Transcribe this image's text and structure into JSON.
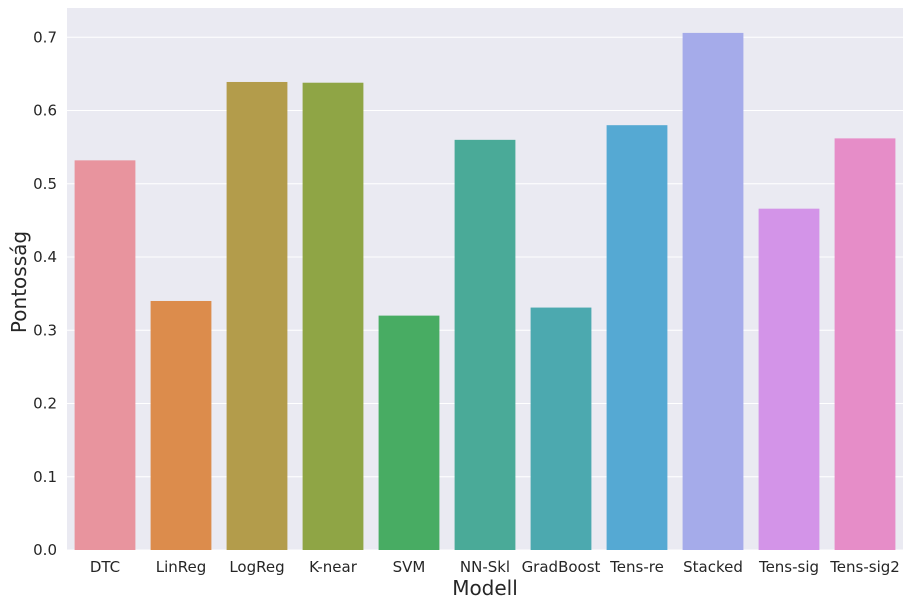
{
  "chart_data": {
    "type": "bar",
    "title": "",
    "xlabel": "Modell",
    "ylabel": "Pontosság",
    "categories": [
      "DTC",
      "LinReg",
      "LogReg",
      "K-near",
      "SVM",
      "NN-Skl",
      "GradBoost",
      "Tens-re",
      "Stacked",
      "Tens-sig",
      "Tens-sig2"
    ],
    "values": [
      0.532,
      0.34,
      0.639,
      0.638,
      0.32,
      0.56,
      0.331,
      0.58,
      0.706,
      0.466,
      0.562
    ],
    "colors": [
      "#e8949e",
      "#dc8c4c",
      "#b39c4b",
      "#8fa545",
      "#48ac63",
      "#4aaa98",
      "#4ca9af",
      "#55a9d3",
      "#a5abea",
      "#d394e8",
      "#e68dc8"
    ],
    "ylim": [
      0,
      0.74
    ],
    "yticks": [
      "0.0",
      "0.1",
      "0.2",
      "0.3",
      "0.4",
      "0.5",
      "0.6",
      "0.7"
    ],
    "grid": true,
    "background": "#eaeaf2"
  }
}
